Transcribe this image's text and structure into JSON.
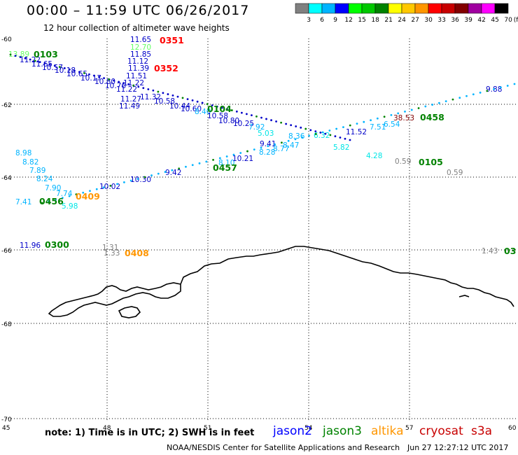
{
  "header": {
    "title": "00:00 – 11:59 UTC 06/26/2017",
    "subtitle": "12 hour collection of altimeter wave heights"
  },
  "colorbar": {
    "labels": [
      "3",
      "6",
      "9",
      "12",
      "15",
      "18",
      "21",
      "24",
      "27",
      "30",
      "33",
      "36",
      "39",
      "42",
      "45",
      "70",
      "(ft)"
    ],
    "colors": [
      "#808080",
      "#00ffff",
      "#00b4ff",
      "#0000ff",
      "#00ff00",
      "#00c800",
      "#008200",
      "#ffff00",
      "#ffc800",
      "#ff9600",
      "#ff0000",
      "#c80000",
      "#820000",
      "#a000a0",
      "#ff00ff",
      "#000000"
    ]
  },
  "axes": {
    "x_ticks": [
      "45",
      "48",
      "51",
      "54",
      "57",
      "60"
    ],
    "y_ticks": [
      "-60",
      "-62",
      "-64",
      "-66",
      "-68",
      "-70"
    ]
  },
  "times": [
    {
      "t": "0103",
      "c": "#008200"
    },
    {
      "t": "0351",
      "c": "#ff0000"
    },
    {
      "t": "0352",
      "c": "#ff0000"
    },
    {
      "t": "0104",
      "c": "#008200"
    },
    {
      "t": "0105",
      "c": "#008200"
    },
    {
      "t": "0458",
      "c": "#008200"
    },
    {
      "t": "0457",
      "c": "#008200"
    },
    {
      "t": "0456",
      "c": "#008200"
    },
    {
      "t": "0409",
      "c": "#ff9600"
    },
    {
      "t": "0300",
      "c": "#008200"
    },
    {
      "t": "0408",
      "c": "#ff9600"
    },
    {
      "t": "03",
      "c": "#008200"
    }
  ],
  "observations": [
    {
      "v": "13.89",
      "c": "#64ff64"
    },
    {
      "v": "11.22",
      "c": "#0000c8"
    },
    {
      "v": "11.65",
      "c": "#0000c8"
    },
    {
      "v": "10.57",
      "c": "#0000c8"
    },
    {
      "v": "10.18",
      "c": "#0000c8"
    },
    {
      "v": "10.65",
      "c": "#0000c8"
    },
    {
      "v": "10.17",
      "c": "#0000c8"
    },
    {
      "v": "10.80",
      "c": "#0000c8"
    },
    {
      "v": "10.76",
      "c": "#0000c8"
    },
    {
      "v": "11.22",
      "c": "#0000c8"
    },
    {
      "v": "11.49",
      "c": "#0000c8"
    },
    {
      "v": "11.27",
      "c": "#0000c8"
    },
    {
      "v": "11.32",
      "c": "#0000c8"
    },
    {
      "v": "10.58",
      "c": "#0000c8"
    },
    {
      "v": "10.44",
      "c": "#0000c8"
    },
    {
      "v": "10.60",
      "c": "#0000c8"
    },
    {
      "v": "8.40",
      "c": "#00b4ff"
    },
    {
      "v": "10.58",
      "c": "#0000c8"
    },
    {
      "v": "10.80",
      "c": "#0000c8"
    },
    {
      "v": "10.25",
      "c": "#0000c8"
    },
    {
      "v": "7.92",
      "c": "#00b4ff"
    },
    {
      "v": "5.03",
      "c": "#00e6e6"
    },
    {
      "v": "9.41",
      "c": "#0000c8"
    },
    {
      "v": "8.36",
      "c": "#00b4ff"
    },
    {
      "v": "11.65",
      "c": "#0000c8"
    },
    {
      "v": "12.70",
      "c": "#64ff64"
    },
    {
      "v": "11.85",
      "c": "#0000c8"
    },
    {
      "v": "11.12",
      "c": "#0000c8"
    },
    {
      "v": "11.39",
      "c": "#0000c8"
    },
    {
      "v": "11.51",
      "c": "#0000c8"
    },
    {
      "v": "11.22",
      "c": "#0000c8"
    },
    {
      "v": "8.98",
      "c": "#00b4ff"
    },
    {
      "v": "8.82",
      "c": "#00b4ff"
    },
    {
      "v": "7.89",
      "c": "#00b4ff"
    },
    {
      "v": "8.24",
      "c": "#00b4ff"
    },
    {
      "v": "7.90",
      "c": "#00b4ff"
    },
    {
      "v": "7.74",
      "c": "#00b4ff"
    },
    {
      "v": "7.41",
      "c": "#00b4ff"
    },
    {
      "v": "5.98",
      "c": "#00e6e6"
    },
    {
      "v": "10.02",
      "c": "#0000c8"
    },
    {
      "v": "10.30",
      "c": "#0000c8"
    },
    {
      "v": "9.42",
      "c": "#0000c8"
    },
    {
      "v": "8.10",
      "c": "#00b4ff"
    },
    {
      "v": "10.21",
      "c": "#0000c8"
    },
    {
      "v": "8.28",
      "c": "#00b4ff"
    },
    {
      "v": "8.77",
      "c": "#00b4ff"
    },
    {
      "v": "8.47",
      "c": "#00b4ff"
    },
    {
      "v": "6.32",
      "c": "#00e6e6"
    },
    {
      "v": "5.82",
      "c": "#00e6e6"
    },
    {
      "v": "4.28",
      "c": "#00e6e6"
    },
    {
      "v": "11.52",
      "c": "#0000c8"
    },
    {
      "v": "7.51",
      "c": "#00b4ff"
    },
    {
      "v": "6.54",
      "c": "#00b4ff"
    },
    {
      "v": "38.53",
      "c": "#820000"
    },
    {
      "v": "9.88",
      "c": "#0000c8"
    },
    {
      "v": "11.96",
      "c": "#0000c8"
    },
    {
      "v": "1.31",
      "c": "#808080"
    },
    {
      "v": "1.33",
      "c": "#808080"
    },
    {
      "v": "1.43",
      "c": "#808080"
    },
    {
      "v": "0.59",
      "c": "#808080"
    },
    {
      "v": "0.59",
      "c": "#808080"
    }
  ],
  "legend": {
    "note": "note: 1) Time is in UTC; 2) SWH is in feet",
    "satellites": [
      {
        "name": "jason2",
        "color": "#0000ff"
      },
      {
        "name": "jason3",
        "color": "#008200"
      },
      {
        "name": "altika",
        "color": "#ff9600"
      },
      {
        "name": "cryosat",
        "color": "#c80000"
      },
      {
        "name": "s3a",
        "color": "#c80000"
      }
    ]
  },
  "footer": {
    "credit": "NOAA/NESDIS Center for Satellite Applications and Research",
    "timestamp": "Jun 27 12:27:12 UTC 2017"
  }
}
